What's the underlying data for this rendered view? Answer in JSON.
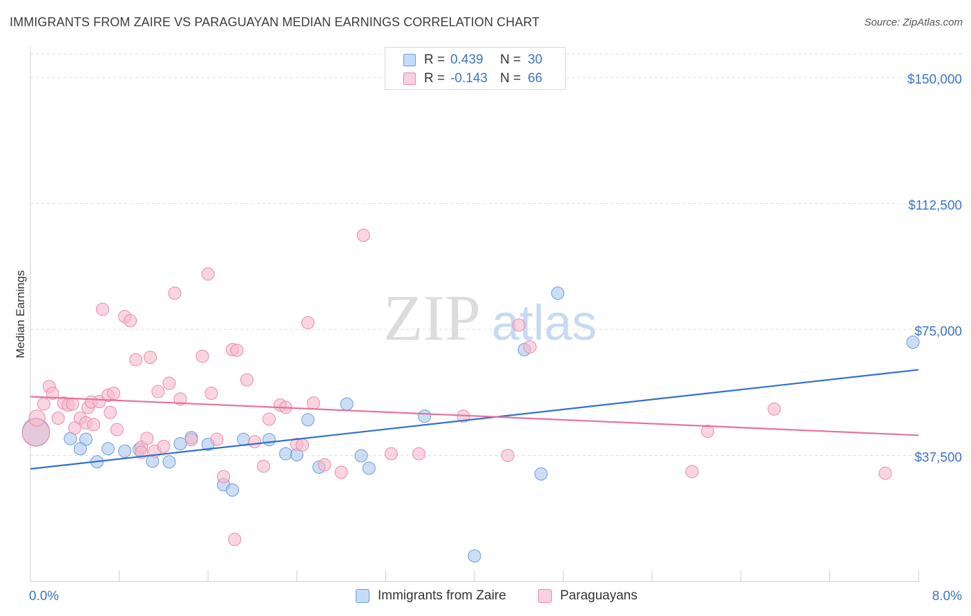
{
  "header": {
    "title": "IMMIGRANTS FROM ZAIRE VS PARAGUAYAN MEDIAN EARNINGS CORRELATION CHART",
    "source": "Source: ZipAtlas.com"
  },
  "watermark": {
    "zip": "ZIP",
    "atlas": "atlas"
  },
  "legend": {
    "rows": [
      {
        "r_label": "R =",
        "r_value": "0.439",
        "n_label": "N =",
        "n_value": "30"
      },
      {
        "r_label": "R =",
        "r_value": "-0.143",
        "n_label": "N =",
        "n_value": "66"
      }
    ]
  },
  "colors": {
    "blue_fill": "#aac8ef",
    "blue_stroke": "#6a9bd8",
    "blue_line": "#2f6fd0",
    "pink_fill": "#f6b9cb",
    "pink_stroke": "#e88aa8",
    "pink_line": "#e8709a",
    "axis_label": "#3b74c8",
    "grid": "#dddddd"
  },
  "chart_data": {
    "type": "scatter",
    "title": "IMMIGRANTS FROM ZAIRE VS PARAGUAYAN MEDIAN EARNINGS CORRELATION CHART",
    "xlabel": "",
    "ylabel": "Median Earnings",
    "xlim": [
      0,
      8
    ],
    "ylim": [
      0,
      157000
    ],
    "x_tick_labels": [
      "0.0%",
      "8.0%"
    ],
    "y_ticks": [
      37500,
      75000,
      112500,
      150000
    ],
    "y_tick_labels": [
      "$37,500",
      "$75,000",
      "$112,500",
      "$150,000"
    ],
    "grid": true,
    "legend_position": "top-center",
    "series": [
      {
        "name": "Immigrants from Zaire",
        "color": "#aac8ef",
        "points": [
          [
            0.05,
            44500,
            2.2
          ],
          [
            0.36,
            42500,
            1
          ],
          [
            0.5,
            42300,
            1
          ],
          [
            0.45,
            39500,
            1
          ],
          [
            0.6,
            35600,
            1
          ],
          [
            0.7,
            39500,
            1
          ],
          [
            0.85,
            38800,
            1
          ],
          [
            0.98,
            39300,
            1
          ],
          [
            1.1,
            35800,
            1
          ],
          [
            1.25,
            35600,
            1
          ],
          [
            1.35,
            41000,
            1
          ],
          [
            1.45,
            42800,
            1
          ],
          [
            1.6,
            40800,
            1
          ],
          [
            1.74,
            28800,
            1
          ],
          [
            1.82,
            27200,
            1
          ],
          [
            1.92,
            42300,
            1
          ],
          [
            2.15,
            42200,
            1
          ],
          [
            2.3,
            38000,
            1
          ],
          [
            2.4,
            37700,
            1
          ],
          [
            2.5,
            48100,
            1
          ],
          [
            2.6,
            34000,
            1
          ],
          [
            2.85,
            52800,
            1
          ],
          [
            2.98,
            37400,
            1
          ],
          [
            3.05,
            33700,
            1
          ],
          [
            3.55,
            49200,
            1
          ],
          [
            4.0,
            7600,
            1
          ],
          [
            4.45,
            69000,
            1
          ],
          [
            4.6,
            32000,
            1
          ],
          [
            4.75,
            85800,
            1
          ],
          [
            7.95,
            71200,
            1
          ]
        ]
      },
      {
        "name": "Paraguayans",
        "color": "#f6b9cb",
        "points": [
          [
            0.05,
            44300,
            2.2
          ],
          [
            0.06,
            48600,
            1.3
          ],
          [
            0.12,
            52800,
            1
          ],
          [
            0.17,
            58000,
            1
          ],
          [
            0.2,
            56000,
            1
          ],
          [
            0.25,
            48600,
            1
          ],
          [
            0.3,
            53100,
            1
          ],
          [
            0.34,
            52500,
            1
          ],
          [
            0.38,
            52800,
            1
          ],
          [
            0.4,
            45700,
            1
          ],
          [
            0.45,
            48600,
            1
          ],
          [
            0.5,
            47200,
            1
          ],
          [
            0.52,
            51800,
            1
          ],
          [
            0.55,
            53400,
            1
          ],
          [
            0.57,
            46700,
            1
          ],
          [
            0.62,
            53500,
            1
          ],
          [
            0.65,
            81000,
            1
          ],
          [
            0.7,
            55400,
            1
          ],
          [
            0.72,
            50300,
            1
          ],
          [
            0.75,
            56000,
            1
          ],
          [
            0.78,
            45200,
            1
          ],
          [
            0.85,
            78800,
            1
          ],
          [
            0.9,
            77600,
            1
          ],
          [
            0.95,
            66000,
            1
          ],
          [
            1.0,
            40000,
            1
          ],
          [
            1.05,
            42600,
            1
          ],
          [
            1.08,
            66700,
            1
          ],
          [
            1.12,
            38800,
            1
          ],
          [
            1.15,
            56500,
            1
          ],
          [
            1.2,
            40200,
            1
          ],
          [
            1.25,
            59000,
            1
          ],
          [
            1.3,
            85800,
            1
          ],
          [
            1.35,
            54300,
            1
          ],
          [
            1.45,
            42200,
            1
          ],
          [
            1.55,
            67000,
            1
          ],
          [
            1.6,
            91500,
            1
          ],
          [
            1.63,
            56000,
            1
          ],
          [
            1.68,
            42300,
            1
          ],
          [
            1.74,
            31200,
            1
          ],
          [
            1.82,
            69000,
            1
          ],
          [
            1.84,
            12500,
            1
          ],
          [
            1.86,
            68800,
            1
          ],
          [
            1.95,
            60000,
            1
          ],
          [
            2.02,
            41600,
            1
          ],
          [
            2.1,
            34300,
            1
          ],
          [
            2.15,
            48300,
            1
          ],
          [
            2.25,
            52500,
            1
          ],
          [
            2.3,
            51800,
            1
          ],
          [
            2.4,
            40800,
            1
          ],
          [
            2.45,
            40600,
            1
          ],
          [
            2.5,
            77000,
            1
          ],
          [
            2.65,
            34700,
            1
          ],
          [
            2.8,
            32500,
            1
          ],
          [
            3.0,
            103000,
            1
          ],
          [
            3.25,
            38000,
            1
          ],
          [
            3.5,
            38000,
            1
          ],
          [
            3.9,
            49200,
            1
          ],
          [
            4.3,
            37500,
            1
          ],
          [
            4.4,
            76300,
            1
          ],
          [
            4.5,
            69800,
            1
          ],
          [
            5.96,
            32700,
            1
          ],
          [
            6.1,
            44700,
            1
          ],
          [
            6.7,
            51300,
            1
          ],
          [
            7.7,
            32200,
            1
          ],
          [
            1.0,
            38400,
            1
          ],
          [
            2.55,
            53100,
            1
          ]
        ]
      }
    ],
    "trend_lines": [
      {
        "series": "Immigrants from Zaire",
        "x": [
          0,
          8
        ],
        "y": [
          33500,
          63000
        ]
      },
      {
        "series": "Paraguayans",
        "x": [
          0,
          8
        ],
        "y": [
          55000,
          43500
        ]
      }
    ]
  }
}
